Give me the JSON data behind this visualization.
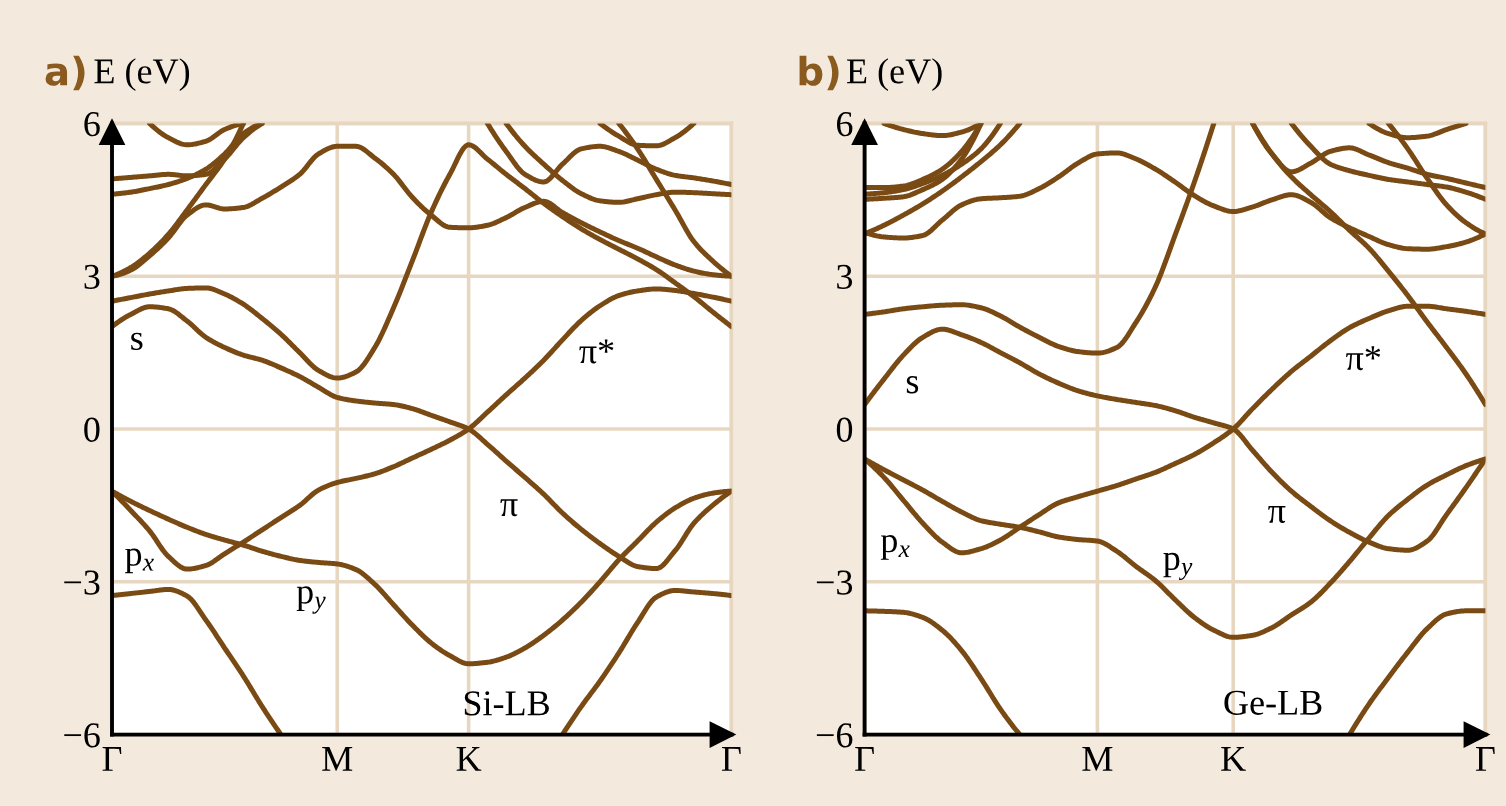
{
  "chart_data": [
    {
      "type": "line",
      "title": "a)",
      "ylabel": "E (eV)",
      "categories": [
        "Γ",
        null,
        null,
        null,
        null,
        null,
        null,
        null,
        null,
        null,
        null,
        null,
        "M",
        null,
        null,
        null,
        null,
        null,
        null,
        "K",
        null,
        null,
        null,
        null,
        null,
        null,
        null,
        null,
        null,
        null,
        null,
        null,
        null,
        "Γ"
      ],
      "ylim": [
        -6,
        6
      ],
      "yticks": [
        -6,
        -3,
        0,
        3,
        6
      ],
      "grid": true,
      "series": [
        {
          "color": "#7a4a14",
          "values": [
            -3.27,
            -3.23,
            -3.19,
            -3.15,
            -3.28,
            -3.75,
            -4.3,
            -4.85,
            -5.45,
            -6.0,
            null,
            null,
            null,
            null,
            null,
            null,
            null,
            null,
            null,
            null,
            null,
            null,
            null,
            null,
            null,
            null,
            null,
            null,
            null,
            null,
            null,
            null,
            null,
            null
          ]
        },
        {
          "color": "#7a4a14",
          "values": [
            null,
            null,
            null,
            null,
            null,
            null,
            null,
            null,
            null,
            null,
            null,
            null,
            null,
            null,
            null,
            null,
            null,
            null,
            null,
            null,
            null,
            null,
            null,
            null,
            -6.0,
            -5.45,
            -4.95,
            -4.4,
            -3.8,
            -3.3,
            -3.17,
            -3.2,
            -3.23,
            -3.27
          ]
        },
        {
          "color": "#7a4a14",
          "values": [
            -1.22,
            -1.6,
            -2.0,
            -2.5,
            -2.75,
            -2.68,
            -2.45,
            -2.22,
            -1.98,
            -1.74,
            -1.5,
            -1.2,
            -1.05,
            -0.97,
            -0.88,
            -0.74,
            -0.57,
            -0.4,
            -0.22,
            0,
            0.33,
            0.67,
            1.0,
            1.35,
            1.75,
            2.13,
            2.42,
            2.62,
            2.71,
            2.75,
            2.72,
            2.66,
            2.59,
            2.51
          ]
        },
        {
          "color": "#7a4a14",
          "values": [
            2.01,
            2.25,
            2.4,
            2.36,
            2.12,
            1.8,
            1.6,
            1.45,
            1.35,
            1.2,
            1.03,
            0.82,
            0.62,
            0.55,
            0.51,
            0.48,
            0.4,
            0.27,
            0.14,
            0,
            -0.3,
            -0.63,
            -0.95,
            -1.28,
            -1.65,
            -1.97,
            -2.25,
            -2.5,
            -2.7,
            -2.74,
            -2.39,
            -1.85,
            -1.5,
            -1.22
          ]
        },
        {
          "color": "#7a4a14",
          "values": [
            -1.22,
            -1.42,
            -1.6,
            -1.77,
            -1.93,
            -2.07,
            -2.18,
            -2.28,
            -2.4,
            -2.5,
            -2.58,
            -2.62,
            -2.65,
            -2.76,
            -3.05,
            -3.45,
            -3.85,
            -4.2,
            -4.45,
            -4.61,
            -4.58,
            -4.48,
            -4.3,
            -4.05,
            -3.75,
            -3.4,
            -3.0,
            -2.57,
            -2.2,
            -1.83,
            -1.55,
            -1.36,
            -1.26,
            -1.22
          ]
        },
        {
          "color": "#7a4a14",
          "values": [
            2.51,
            2.58,
            2.65,
            2.71,
            2.76,
            2.77,
            2.65,
            2.45,
            2.17,
            1.86,
            1.5,
            1.15,
            1.0,
            1.12,
            1.6,
            2.38,
            3.3,
            4.25,
            5.0,
            5.58,
            5.3,
            5.0,
            4.72,
            4.43,
            4.17,
            3.93,
            3.72,
            3.53,
            3.34,
            3.13,
            2.87,
            2.6,
            2.3,
            2.01
          ]
        },
        {
          "color": "#7a4a14",
          "values": [
            3.0,
            3.12,
            3.4,
            3.75,
            4.2,
            4.4,
            4.32,
            4.35,
            4.53,
            4.75,
            5.0,
            5.4,
            5.55,
            5.55,
            5.32,
            5.0,
            4.55,
            4.2,
            3.96,
            3.95,
            4.0,
            4.15,
            4.35,
            4.47,
            4.25,
            4.05,
            3.87,
            3.7,
            3.55,
            3.38,
            3.22,
            3.1,
            3.03,
            3.0
          ]
        },
        {
          "color": "#7a4a14",
          "values": [
            3.0,
            3.17,
            3.45,
            3.82,
            4.3,
            4.8,
            5.3,
            6.0,
            null,
            null,
            null,
            null,
            null,
            null,
            null,
            null,
            null,
            null,
            null,
            null,
            null,
            null,
            null,
            null,
            null,
            null,
            null,
            null,
            null,
            null,
            null,
            null,
            null,
            null
          ]
        },
        {
          "color": "#7a4a14",
          "values": [
            4.91,
            4.94,
            4.97,
            5.0,
            4.97,
            5.0,
            5.3,
            5.72,
            6.0,
            null,
            null,
            null,
            null,
            null,
            null,
            null,
            null,
            null,
            null,
            null,
            null,
            null,
            null,
            null,
            null,
            null,
            null,
            null,
            null,
            null,
            null,
            null,
            null,
            null
          ]
        },
        {
          "color": "#7a4a14",
          "values": [
            4.61,
            4.65,
            4.72,
            4.8,
            4.92,
            5.1,
            5.4,
            5.8,
            6.0,
            null,
            null,
            null,
            null,
            null,
            null,
            null,
            null,
            null,
            null,
            null,
            null,
            null,
            null,
            null,
            null,
            null,
            null,
            null,
            null,
            null,
            null,
            null,
            null,
            null
          ]
        },
        {
          "color": "#7a4a14",
          "values": [
            null,
            null,
            6.0,
            5.72,
            5.58,
            5.65,
            5.88,
            6.0,
            null,
            null,
            null,
            null,
            null,
            null,
            null,
            null,
            null,
            null,
            null,
            null,
            null,
            null,
            null,
            null,
            null,
            null,
            null,
            null,
            null,
            null,
            null,
            null,
            null,
            null
          ]
        },
        {
          "color": "#7a4a14",
          "values": [
            null,
            null,
            null,
            null,
            null,
            null,
            null,
            null,
            null,
            null,
            null,
            null,
            null,
            null,
            null,
            null,
            null,
            null,
            null,
            null,
            6.0,
            5.45,
            5.0,
            4.85,
            5.2,
            5.5,
            5.55,
            5.45,
            5.28,
            5.1,
            4.98,
            4.93,
            4.87,
            4.8
          ]
        },
        {
          "color": "#7a4a14",
          "values": [
            null,
            null,
            null,
            null,
            null,
            null,
            null,
            null,
            null,
            null,
            null,
            null,
            null,
            null,
            null,
            null,
            null,
            null,
            null,
            null,
            null,
            6.0,
            5.55,
            5.2,
            4.88,
            4.62,
            4.48,
            4.45,
            4.52,
            4.6,
            4.65,
            4.64,
            4.62,
            4.6
          ]
        },
        {
          "color": "#7a4a14",
          "values": [
            null,
            null,
            null,
            null,
            null,
            null,
            null,
            null,
            null,
            null,
            null,
            null,
            null,
            null,
            null,
            null,
            null,
            null,
            null,
            null,
            null,
            null,
            null,
            null,
            null,
            null,
            null,
            6.0,
            5.5,
            4.9,
            4.3,
            3.68,
            3.3,
            3.0
          ]
        },
        {
          "color": "#7a4a14",
          "values": [
            null,
            null,
            null,
            null,
            null,
            null,
            null,
            null,
            null,
            null,
            null,
            null,
            null,
            null,
            null,
            null,
            null,
            null,
            null,
            null,
            null,
            null,
            null,
            null,
            null,
            null,
            6.0,
            5.75,
            5.57,
            5.56,
            5.72,
            6.0,
            null,
            null
          ]
        }
      ],
      "annotations": [
        "s",
        "π*",
        "π",
        "p$_{x}$",
        "p$_{y}$",
        "Si-LB"
      ]
    },
    {
      "type": "line",
      "title": "b)",
      "ylabel": "E (eV)",
      "categories": [
        "Γ",
        null,
        null,
        null,
        null,
        null,
        null,
        null,
        null,
        null,
        null,
        null,
        "M",
        null,
        null,
        null,
        null,
        null,
        null,
        "K",
        null,
        null,
        null,
        null,
        null,
        null,
        null,
        null,
        null,
        null,
        null,
        null,
        "Γ"
      ],
      "ylim": [
        -6,
        6
      ],
      "yticks": [
        -6,
        -3,
        0,
        3,
        6
      ],
      "grid": true,
      "series": [
        {
          "color": "#7a4a14",
          "values": [
            -3.57,
            -3.58,
            -3.6,
            -3.7,
            -3.95,
            -4.35,
            -4.9,
            -5.5,
            -6.0,
            null,
            null,
            null,
            null,
            null,
            null,
            null,
            null,
            null,
            null,
            null,
            null,
            null,
            null,
            null,
            null,
            null,
            null,
            null,
            null,
            null,
            null,
            null,
            null
          ]
        },
        {
          "color": "#7a4a14",
          "values": [
            null,
            null,
            null,
            null,
            null,
            null,
            null,
            null,
            null,
            null,
            null,
            null,
            null,
            null,
            null,
            null,
            null,
            null,
            null,
            null,
            null,
            null,
            null,
            null,
            null,
            -6.0,
            -5.4,
            -4.88,
            -4.38,
            -3.92,
            -3.63,
            -3.57,
            -3.57
          ]
        },
        {
          "color": "#7a4a14",
          "values": [
            -0.59,
            -0.95,
            -1.4,
            -1.85,
            -2.22,
            -2.43,
            -2.35,
            -2.18,
            -1.93,
            -1.68,
            -1.45,
            -1.33,
            -1.22,
            -1.11,
            -0.98,
            -0.85,
            -0.68,
            -0.5,
            -0.27,
            0,
            0.4,
            0.78,
            1.13,
            1.43,
            1.73,
            1.99,
            2.17,
            2.32,
            2.41,
            2.41,
            2.36,
            2.31,
            2.25
          ]
        },
        {
          "color": "#7a4a14",
          "values": [
            0.48,
            0.98,
            1.45,
            1.8,
            1.96,
            1.85,
            1.7,
            1.5,
            1.3,
            1.08,
            0.9,
            0.75,
            0.65,
            0.58,
            0.52,
            0.46,
            0.36,
            0.23,
            0.12,
            0,
            -0.42,
            -0.85,
            -1.22,
            -1.52,
            -1.8,
            -2.03,
            -2.22,
            -2.35,
            -2.38,
            -2.2,
            -1.68,
            -1.15,
            -0.59
          ]
        },
        {
          "color": "#7a4a14",
          "values": [
            -0.59,
            -0.8,
            -1.0,
            -1.2,
            -1.42,
            -1.63,
            -1.8,
            -1.87,
            -1.93,
            -2.02,
            -2.12,
            -2.17,
            -2.2,
            -2.4,
            -2.7,
            -2.98,
            -3.35,
            -3.7,
            -3.95,
            -4.09,
            -4.05,
            -3.9,
            -3.65,
            -3.4,
            -3.03,
            -2.6,
            -2.14,
            -1.7,
            -1.38,
            -1.1,
            -0.9,
            -0.72,
            -0.59
          ]
        },
        {
          "color": "#7a4a14",
          "values": [
            2.25,
            2.3,
            2.36,
            2.4,
            2.43,
            2.44,
            2.38,
            2.22,
            2.0,
            1.8,
            1.62,
            1.52,
            1.49,
            1.6,
            2.1,
            2.8,
            3.8,
            4.85,
            6.0,
            null,
            null,
            null,
            null,
            null,
            null,
            null,
            null,
            null,
            null,
            null,
            null,
            null,
            null
          ]
        },
        {
          "color": "#7a4a14",
          "values": [
            null,
            null,
            null,
            null,
            null,
            null,
            null,
            null,
            null,
            null,
            null,
            null,
            null,
            null,
            null,
            null,
            null,
            null,
            null,
            null,
            6.0,
            5.4,
            4.95,
            4.6,
            4.27,
            3.9,
            3.55,
            3.1,
            2.62,
            2.1,
            1.6,
            1.08,
            0.48
          ]
        },
        {
          "color": "#7a4a14",
          "values": [
            3.86,
            3.77,
            3.75,
            3.8,
            4.1,
            4.4,
            4.52,
            4.54,
            4.57,
            4.72,
            4.95,
            5.22,
            5.4,
            5.42,
            5.3,
            5.1,
            4.85,
            4.58,
            4.38,
            4.27,
            4.36,
            4.5,
            4.6,
            4.45,
            4.15,
            3.95,
            3.78,
            3.62,
            3.54,
            3.53,
            3.58,
            3.67,
            3.83
          ]
        },
        {
          "color": "#7a4a14",
          "values": [
            3.83,
            4.0,
            4.2,
            4.42,
            4.67,
            4.95,
            5.25,
            5.58,
            6.0,
            null,
            null,
            null,
            null,
            null,
            null,
            null,
            null,
            null,
            null,
            null,
            null,
            null,
            null,
            null,
            null,
            null,
            null,
            null,
            null,
            null,
            null,
            null,
            null
          ]
        },
        {
          "color": "#7a4a14",
          "values": [
            4.51,
            4.53,
            4.56,
            4.7,
            4.9,
            5.3,
            6.0,
            null,
            null,
            null,
            null,
            null,
            null,
            null,
            null,
            null,
            null,
            null,
            null,
            null,
            null,
            null,
            null,
            null,
            null,
            null,
            null,
            null,
            null,
            null,
            null,
            null,
            null
          ]
        },
        {
          "color": "#7a4a14",
          "values": [
            4.74,
            4.74,
            4.77,
            4.9,
            5.1,
            5.45,
            6.0,
            null,
            null,
            null,
            null,
            null,
            null,
            null,
            null,
            null,
            null,
            null,
            null,
            null,
            null,
            null,
            null,
            null,
            null,
            null,
            null,
            null,
            null,
            null,
            null,
            null,
            null
          ]
        },
        {
          "color": "#7a4a14",
          "values": [
            4.61,
            4.64,
            4.7,
            4.82,
            4.98,
            5.2,
            5.5,
            6.0,
            null,
            null,
            null,
            null,
            null,
            null,
            null,
            null,
            null,
            null,
            null,
            null,
            null,
            null,
            null,
            null,
            null,
            null,
            null,
            null,
            null,
            null,
            null,
            null,
            null
          ]
        },
        {
          "color": "#7a4a14",
          "values": [
            null,
            6.0,
            5.88,
            5.8,
            5.76,
            5.83,
            6.0,
            null,
            null,
            null,
            null,
            null,
            null,
            null,
            null,
            null,
            null,
            null,
            null,
            null,
            null,
            null,
            null,
            null,
            null,
            null,
            null,
            null,
            null,
            null,
            null,
            null,
            null
          ]
        },
        {
          "color": "#7a4a14",
          "values": [
            null,
            null,
            null,
            null,
            null,
            null,
            null,
            null,
            null,
            null,
            null,
            null,
            null,
            null,
            null,
            null,
            null,
            null,
            null,
            null,
            6.0,
            5.4,
            5.05,
            5.22,
            5.45,
            5.52,
            5.38,
            5.23,
            5.12,
            5.0,
            4.92,
            4.83,
            4.74
          ]
        },
        {
          "color": "#7a4a14",
          "values": [
            null,
            null,
            null,
            null,
            null,
            null,
            null,
            null,
            null,
            null,
            null,
            null,
            null,
            null,
            null,
            null,
            null,
            null,
            null,
            null,
            null,
            null,
            6.0,
            5.55,
            5.2,
            5.07,
            4.98,
            4.9,
            4.85,
            4.8,
            4.75,
            4.65,
            4.51
          ]
        },
        {
          "color": "#7a4a14",
          "values": [
            null,
            null,
            null,
            null,
            null,
            null,
            null,
            null,
            null,
            null,
            null,
            null,
            null,
            null,
            null,
            null,
            null,
            null,
            null,
            null,
            null,
            null,
            null,
            null,
            null,
            null,
            6.0,
            5.8,
            5.72,
            5.75,
            5.88,
            6.0,
            null
          ]
        },
        {
          "color": "#7a4a14",
          "values": [
            null,
            null,
            null,
            null,
            null,
            null,
            null,
            null,
            null,
            null,
            null,
            null,
            null,
            null,
            null,
            null,
            null,
            null,
            null,
            null,
            null,
            null,
            null,
            null,
            null,
            null,
            null,
            6.0,
            5.5,
            4.92,
            4.4,
            4.05,
            3.83
          ]
        }
      ],
      "annotations": [
        "s",
        "π*",
        "π",
        "p$_{x}$",
        "p$_{y}$",
        "Ge-LB"
      ]
    }
  ]
}
